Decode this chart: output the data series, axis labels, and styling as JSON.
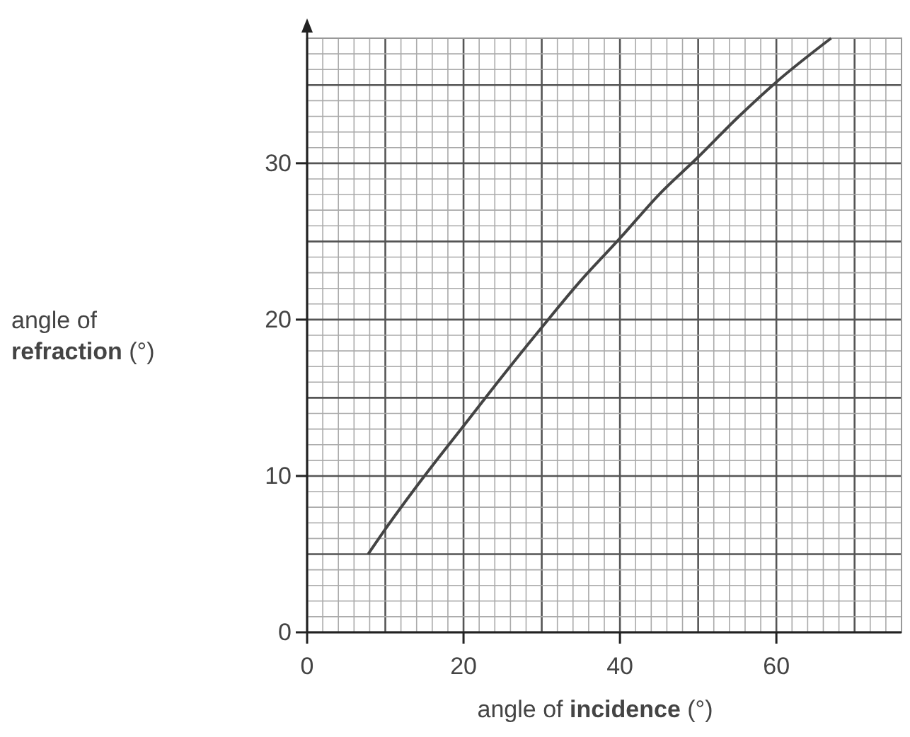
{
  "chart_data": {
    "type": "line",
    "xlabel": "angle of incidence (°)",
    "ylabel": "angle of refraction (°)",
    "x": [
      7.8,
      10,
      15,
      20,
      25,
      30,
      35,
      40,
      45,
      50,
      55,
      60,
      67
    ],
    "series": [
      {
        "color": "#444444",
        "values": [
          5,
          6.6,
          10,
          13.2,
          16.4,
          19.5,
          22.5,
          25.2,
          28,
          30.4,
          32.9,
          35.2,
          38
        ]
      }
    ],
    "xlim": [
      0,
      76
    ],
    "ylim": [
      0,
      38
    ],
    "xticks": [
      0,
      20,
      40,
      60
    ],
    "yticks": [
      0,
      10,
      20,
      30
    ],
    "grid": true,
    "marker": "none",
    "line_style": "solid"
  }
}
